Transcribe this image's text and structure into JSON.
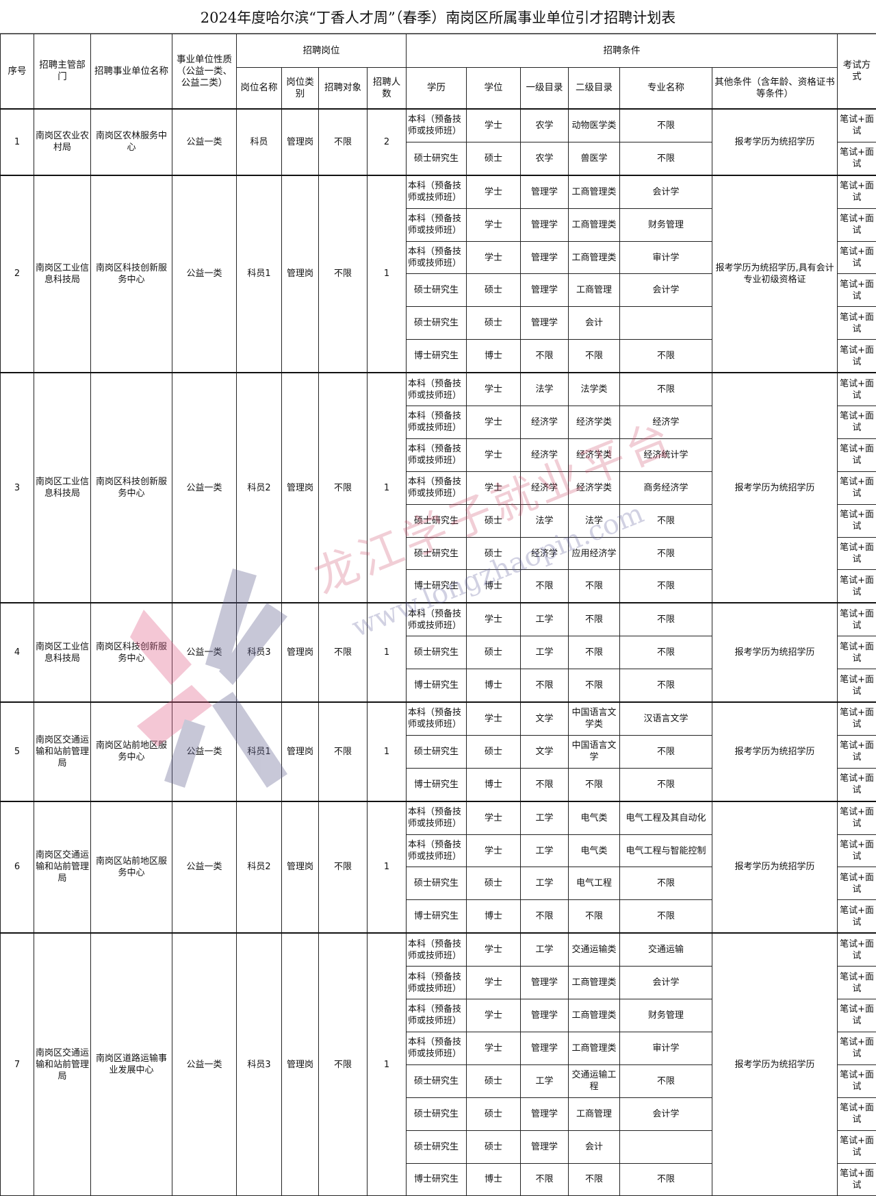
{
  "title": "2024年度哈尔滨“丁香人才周”（春季）南岗区所属事业单位引才招聘计划表",
  "headers": {
    "seq": "序号",
    "dept": "招聘主管部门",
    "unit": "招聘事业单位名称",
    "nature": "事业单位性质（公益一类、公益二类）",
    "post_group": "招聘岗位",
    "post_name": "岗位名称",
    "post_type": "岗位类别",
    "target": "招聘对象",
    "count": "招聘人数",
    "cond_group": "招聘条件",
    "education": "学历",
    "degree": "学位",
    "cat1": "一级目录",
    "cat2": "二级目录",
    "major": "专业名称",
    "other": "其他条件（含年龄、资格证书等条件）",
    "exam": "考试方式"
  },
  "groups": [
    {
      "seq": "1",
      "dept": "南岗区农业农村局",
      "unit": "南岗区农林服务中心",
      "nature": "公益一类",
      "post_name": "科员",
      "post_type": "管理岗",
      "target": "不限",
      "count": "2",
      "other": "报考学历为统招学历",
      "rows": [
        [
          "本科（预备技师或技师班）",
          "学士",
          "农学",
          "动物医学类",
          "不限",
          "笔试+面试"
        ],
        [
          "硕士研究生",
          "硕士",
          "农学",
          "兽医学",
          "不限",
          "笔试+面试"
        ]
      ]
    },
    {
      "seq": "2",
      "dept": "南岗区工业信息科技局",
      "unit": "南岗区科技创新服务中心",
      "nature": "公益一类",
      "post_name": "科员1",
      "post_type": "管理岗",
      "target": "不限",
      "count": "1",
      "other": "报考学历为统招学历,具有会计专业初级资格证",
      "rows": [
        [
          "本科（预备技师或技师班）",
          "学士",
          "管理学",
          "工商管理类",
          "会计学",
          "笔试+面试"
        ],
        [
          "本科（预备技师或技师班）",
          "学士",
          "管理学",
          "工商管理类",
          "财务管理",
          "笔试+面试"
        ],
        [
          "本科（预备技师或技师班）",
          "学士",
          "管理学",
          "工商管理类",
          "审计学",
          "笔试+面试"
        ],
        [
          "硕士研究生",
          "硕士",
          "管理学",
          "工商管理",
          "会计学",
          "笔试+面试"
        ],
        [
          "硕士研究生",
          "硕士",
          "管理学",
          "会计",
          "",
          "笔试+面试"
        ],
        [
          "博士研究生",
          "博士",
          "不限",
          "不限",
          "不限",
          "笔试+面试"
        ]
      ]
    },
    {
      "seq": "3",
      "dept": "南岗区工业信息科技局",
      "unit": "南岗区科技创新服务中心",
      "nature": "公益一类",
      "post_name": "科员2",
      "post_type": "管理岗",
      "target": "不限",
      "count": "1",
      "other": "报考学历为统招学历",
      "rows": [
        [
          "本科（预备技师或技师班）",
          "学士",
          "法学",
          "法学类",
          "不限",
          "笔试+面试"
        ],
        [
          "本科（预备技师或技师班）",
          "学士",
          "经济学",
          "经济学类",
          "经济学",
          "笔试+面试"
        ],
        [
          "本科（预备技师或技师班）",
          "学士",
          "经济学",
          "经济学类",
          "经济统计学",
          "笔试+面试"
        ],
        [
          "本科（预备技师或技师班）",
          "学士",
          "经济学",
          "经济学类",
          "商务经济学",
          "笔试+面试"
        ],
        [
          "硕士研究生",
          "硕士",
          "法学",
          "法学",
          "不限",
          "笔试+面试"
        ],
        [
          "硕士研究生",
          "硕士",
          "经济学",
          "应用经济学",
          "不限",
          "笔试+面试"
        ],
        [
          "博士研究生",
          "博士",
          "不限",
          "不限",
          "不限",
          "笔试+面试"
        ]
      ]
    },
    {
      "seq": "4",
      "dept": "南岗区工业信息科技局",
      "unit": "南岗区科技创新服务中心",
      "nature": "公益一类",
      "post_name": "科员3",
      "post_type": "管理岗",
      "target": "不限",
      "count": "1",
      "other": "报考学历为统招学历",
      "rows": [
        [
          "本科（预备技师或技师班）",
          "学士",
          "工学",
          "不限",
          "不限",
          "笔试+面试"
        ],
        [
          "硕士研究生",
          "硕士",
          "工学",
          "不限",
          "不限",
          "笔试+面试"
        ],
        [
          "博士研究生",
          "博士",
          "不限",
          "不限",
          "不限",
          "笔试+面试"
        ]
      ]
    },
    {
      "seq": "5",
      "dept": "南岗区交通运输和站前管理局",
      "unit": "南岗区站前地区服务中心",
      "nature": "公益一类",
      "post_name": "科员1",
      "post_type": "管理岗",
      "target": "不限",
      "count": "1",
      "other": "报考学历为统招学历",
      "rows": [
        [
          "本科（预备技师或技师班）",
          "学士",
          "文学",
          "中国语言文学类",
          "汉语言文学",
          "笔试+面试"
        ],
        [
          "硕士研究生",
          "硕士",
          "文学",
          "中国语言文学",
          "不限",
          "笔试+面试"
        ],
        [
          "博士研究生",
          "博士",
          "不限",
          "不限",
          "不限",
          "笔试+面试"
        ]
      ]
    },
    {
      "seq": "6",
      "dept": "南岗区交通运输和站前管理局",
      "unit": "南岗区站前地区服务中心",
      "nature": "公益一类",
      "post_name": "科员2",
      "post_type": "管理岗",
      "target": "不限",
      "count": "1",
      "other": "报考学历为统招学历",
      "rows": [
        [
          "本科（预备技师或技师班）",
          "学士",
          "工学",
          "电气类",
          "电气工程及其自动化",
          "笔试+面试"
        ],
        [
          "本科（预备技师或技师班）",
          "学士",
          "工学",
          "电气类",
          "电气工程与智能控制",
          "笔试+面试"
        ],
        [
          "硕士研究生",
          "硕士",
          "工学",
          "电气工程",
          "不限",
          "笔试+面试"
        ],
        [
          "博士研究生",
          "博士",
          "不限",
          "不限",
          "不限",
          "笔试+面试"
        ]
      ]
    },
    {
      "seq": "7",
      "dept": "南岗区交通运输和站前管理局",
      "unit": "南岗区道路运输事业发展中心",
      "nature": "公益一类",
      "post_name": "科员3",
      "post_type": "管理岗",
      "target": "不限",
      "count": "1",
      "other": "报考学历为统招学历",
      "rows": [
        [
          "本科（预备技师或技师班）",
          "学士",
          "工学",
          "交通运输类",
          "交通运输",
          "笔试+面试"
        ],
        [
          "本科（预备技师或技师班）",
          "学士",
          "管理学",
          "工商管理类",
          "会计学",
          "笔试+面试"
        ],
        [
          "本科（预备技师或技师班）",
          "学士",
          "管理学",
          "工商管理类",
          "财务管理",
          "笔试+面试"
        ],
        [
          "本科（预备技师或技师班）",
          "学士",
          "管理学",
          "工商管理类",
          "审计学",
          "笔试+面试"
        ],
        [
          "硕士研究生",
          "硕士",
          "工学",
          "交通运输工程",
          "不限",
          "笔试+面试"
        ],
        [
          "硕士研究生",
          "硕士",
          "管理学",
          "工商管理",
          "会计学",
          "笔试+面试"
        ],
        [
          "硕士研究生",
          "硕士",
          "管理学",
          "会计",
          "",
          "笔试+面试"
        ],
        [
          "博士研究生",
          "博士",
          "不限",
          "不限",
          "不限",
          "笔试+面试"
        ]
      ]
    }
  ],
  "watermark": {
    "brand": "龙江学子就业平台",
    "url": "www.longzhaopin.com"
  }
}
